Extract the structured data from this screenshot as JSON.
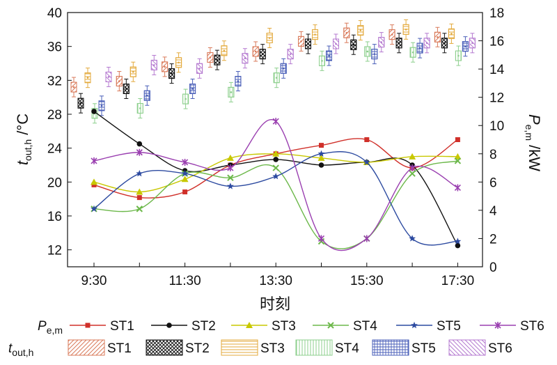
{
  "chart_data": {
    "type": "line",
    "xlabel": "时刻",
    "x_ticks": [
      "9:30",
      "11:30",
      "13:30",
      "15:30",
      "17:30"
    ],
    "x": [
      "9:30",
      "10:30",
      "11:30",
      "12:30",
      "13:30",
      "14:30",
      "15:30",
      "16:30",
      "17:30"
    ],
    "left_axis": {
      "label_main": "t",
      "label_sub": "out,h",
      "label_unit": " /°C",
      "ylim": [
        10,
        40
      ],
      "ticks": [
        "12",
        "16",
        "20",
        "24",
        "28",
        "32",
        "36",
        "40"
      ]
    },
    "right_axis": {
      "label_main": "P",
      "label_sub": "e,m",
      "label_unit": " /kW",
      "ylim": [
        0,
        18
      ],
      "ticks": [
        "0",
        "2",
        "4",
        "6",
        "8",
        "10",
        "12",
        "14",
        "16",
        "18"
      ]
    },
    "series": [
      {
        "name": "ST1",
        "color": "#d0302a",
        "marker": "square",
        "values": [
          5.8,
          4.9,
          5.3,
          7.2,
          8.0,
          8.6,
          9.0,
          7.0,
          9.0
        ]
      },
      {
        "name": "ST2",
        "color": "#111111",
        "marker": "circle",
        "values": [
          11.0,
          8.7,
          6.8,
          7.2,
          7.6,
          7.2,
          7.4,
          7.2,
          1.5
        ]
      },
      {
        "name": "ST3",
        "color": "#c8c800",
        "marker": "triangle",
        "values": [
          6.0,
          5.3,
          6.2,
          7.7,
          8.0,
          7.7,
          7.4,
          7.8,
          7.8
        ]
      },
      {
        "name": "ST4",
        "color": "#6cb84a",
        "marker": "x",
        "values": [
          4.1,
          4.1,
          6.6,
          6.3,
          7.0,
          1.8,
          2.0,
          6.6,
          7.5
        ]
      },
      {
        "name": "ST5",
        "color": "#2c4aa0",
        "marker": "star",
        "values": [
          4.1,
          6.6,
          6.6,
          5.7,
          6.4,
          8.0,
          7.4,
          2.0,
          1.8
        ]
      },
      {
        "name": "ST6",
        "color": "#9a3fb0",
        "marker": "asterisk",
        "values": [
          7.5,
          8.1,
          7.4,
          7.0,
          10.3,
          2.0,
          2.0,
          7.0,
          5.6
        ]
      }
    ],
    "boxplots": [
      {
        "name": "ST1",
        "color": "#d97a5a",
        "pattern": "diag",
        "values": [
          31.2,
          31.9,
          33.6,
          34.7,
          35.4,
          36.6,
          37.6,
          37.4,
          37.1
        ]
      },
      {
        "name": "ST2",
        "color": "#111111",
        "pattern": "cross",
        "values": [
          29.3,
          31.0,
          32.8,
          34.4,
          35.1,
          36.3,
          36.2,
          36.4,
          36.4
        ]
      },
      {
        "name": "ST3",
        "color": "#e3a93b",
        "pattern": "horiz",
        "values": [
          32.3,
          33.0,
          34.1,
          35.5,
          37.0,
          37.4,
          37.9,
          38.0,
          37.5
        ]
      },
      {
        "name": "ST4",
        "color": "#8ccf8c",
        "pattern": "vert",
        "values": [
          28.1,
          28.7,
          29.8,
          30.6,
          32.3,
          34.3,
          35.4,
          35.3,
          34.9
        ]
      },
      {
        "name": "ST5",
        "color": "#4a5fb8",
        "pattern": "grid",
        "values": [
          29.0,
          30.2,
          31.0,
          31.9,
          33.4,
          34.9,
          35.1,
          35.8,
          36.0
        ]
      },
      {
        "name": "ST6",
        "color": "#b57ad0",
        "pattern": "diag2",
        "values": [
          32.4,
          33.8,
          33.4,
          34.6,
          35.1,
          36.3,
          36.5,
          36.4,
          36.4
        ]
      }
    ],
    "legend": {
      "line_label_main": "P",
      "line_label_sub": "e,m",
      "box_label_main": "t",
      "box_label_sub": "out,h"
    }
  }
}
